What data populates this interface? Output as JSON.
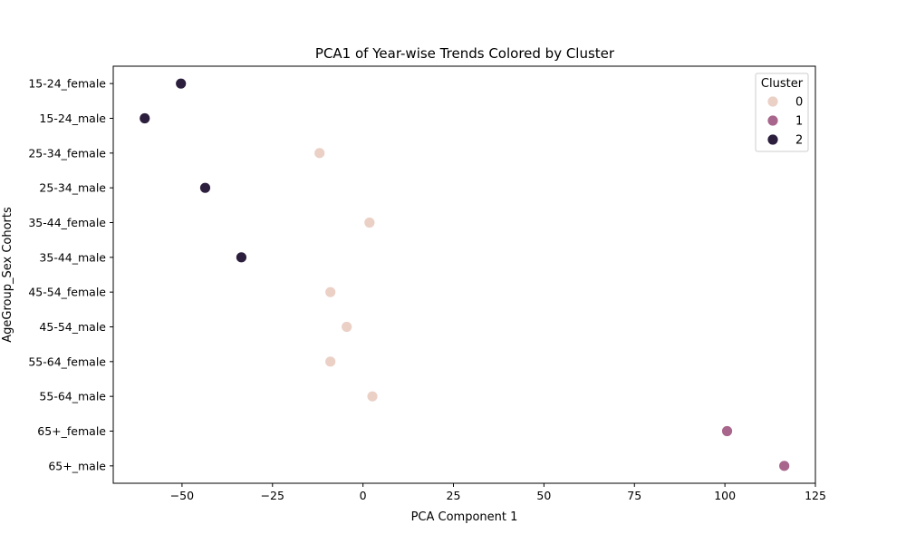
{
  "chart_data": {
    "type": "scatter",
    "title": "PCA1 of Year-wise Trends Colored by Cluster",
    "xlabel": "PCA Component 1",
    "ylabel": "AgeGroup_Sex Cohorts",
    "xlim": [
      -69,
      125
    ],
    "xticks": [
      -50,
      -25,
      0,
      25,
      50,
      75,
      100,
      125
    ],
    "xtick_labels": [
      "−50",
      "−25",
      "0",
      "25",
      "50",
      "75",
      "100",
      "125"
    ],
    "categories": [
      "15-24_female",
      "15-24_male",
      "25-34_female",
      "25-34_male",
      "35-44_female",
      "35-44_male",
      "45-54_female",
      "45-54_male",
      "55-64_female",
      "55-64_male",
      "65+_female",
      "65+_male"
    ],
    "points": [
      {
        "category": "15-24_female",
        "x": -50.3,
        "cluster": 2
      },
      {
        "category": "15-24_male",
        "x": -60.3,
        "cluster": 2
      },
      {
        "category": "25-34_female",
        "x": -12.0,
        "cluster": 0
      },
      {
        "category": "25-34_male",
        "x": -43.6,
        "cluster": 2
      },
      {
        "category": "35-44_female",
        "x": 1.8,
        "cluster": 0
      },
      {
        "category": "35-44_male",
        "x": -33.6,
        "cluster": 2
      },
      {
        "category": "45-54_female",
        "x": -9.0,
        "cluster": 0
      },
      {
        "category": "45-54_male",
        "x": -4.5,
        "cluster": 0
      },
      {
        "category": "55-64_female",
        "x": -9.0,
        "cluster": 0
      },
      {
        "category": "55-64_male",
        "x": 2.6,
        "cluster": 0
      },
      {
        "category": "65+_female",
        "x": 100.6,
        "cluster": 1
      },
      {
        "category": "65+_male",
        "x": 116.4,
        "cluster": 1
      }
    ],
    "legend": {
      "title": "Cluster",
      "placement": "top-right",
      "entries": [
        {
          "label": "0",
          "color": "#ebd0c6"
        },
        {
          "label": "1",
          "color": "#a8668c"
        },
        {
          "label": "2",
          "color": "#2c1e3d"
        }
      ]
    },
    "grid": false
  }
}
